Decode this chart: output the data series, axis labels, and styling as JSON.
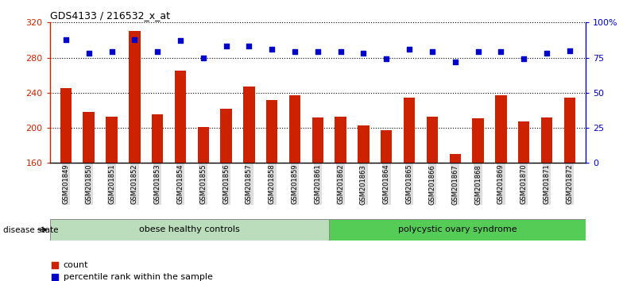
{
  "title": "GDS4133 / 216532_x_at",
  "samples": [
    "GSM201849",
    "GSM201850",
    "GSM201851",
    "GSM201852",
    "GSM201853",
    "GSM201854",
    "GSM201855",
    "GSM201856",
    "GSM201857",
    "GSM201858",
    "GSM201859",
    "GSM201861",
    "GSM201862",
    "GSM201863",
    "GSM201864",
    "GSM201865",
    "GSM201866",
    "GSM201867",
    "GSM201868",
    "GSM201869",
    "GSM201870",
    "GSM201871",
    "GSM201872"
  ],
  "counts": [
    245,
    218,
    213,
    310,
    215,
    265,
    201,
    222,
    247,
    232,
    237,
    212,
    213,
    203,
    197,
    234,
    213,
    170,
    211,
    237,
    207,
    212,
    234
  ],
  "percentiles": [
    88,
    78,
    79,
    88,
    79,
    87,
    75,
    83,
    83,
    81,
    79,
    79,
    79,
    78,
    74,
    81,
    79,
    72,
    79,
    79,
    74,
    78,
    80
  ],
  "group1_label": "obese healthy controls",
  "group1_count": 12,
  "group2_label": "polycystic ovary syndrome",
  "group2_count": 11,
  "disease_state_label": "disease state",
  "ylim_left": [
    160,
    320
  ],
  "ylim_right": [
    0,
    100
  ],
  "yticks_left": [
    160,
    200,
    240,
    280,
    320
  ],
  "yticks_right": [
    0,
    25,
    50,
    75,
    100
  ],
  "yticklabels_right": [
    "0",
    "25",
    "50",
    "75",
    "100%"
  ],
  "bar_color": "#CC2200",
  "dot_color": "#0000CC",
  "bg_color": "#FFFFFF",
  "group1_color": "#BBDDBB",
  "group2_color": "#55CC55",
  "legend_count_label": "count",
  "legend_pct_label": "percentile rank within the sample"
}
